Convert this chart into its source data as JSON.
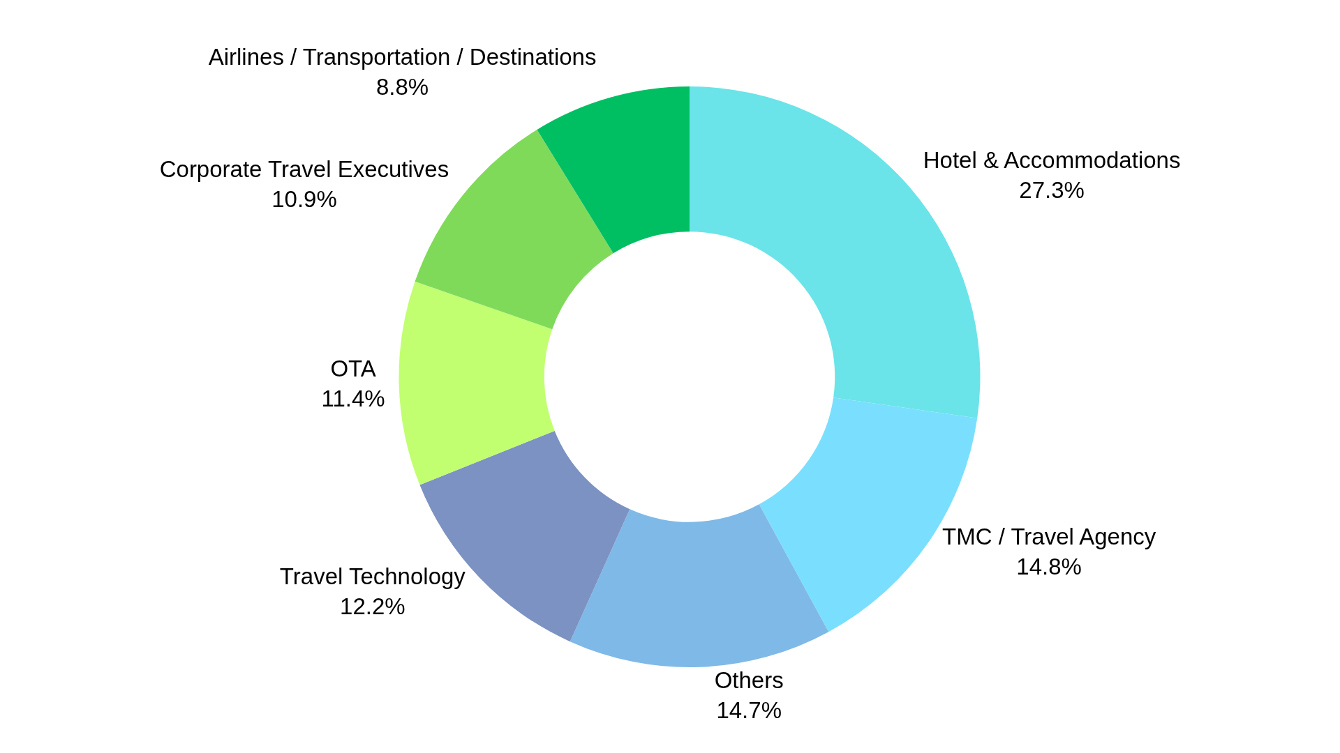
{
  "chart_data": {
    "type": "donut",
    "categories": [
      "Hotel & Accommodations",
      "TMC / Travel Agency",
      "Others",
      "Travel Technology",
      "OTA",
      "Corporate Travel Executives",
      "Airlines / Transportation / Destinations"
    ],
    "values": [
      27.3,
      14.8,
      14.7,
      12.2,
      11.4,
      10.9,
      8.8
    ],
    "value_labels": [
      "27.3%",
      "14.8%",
      "14.7%",
      "12.2%",
      "11.4%",
      "10.9%",
      "8.8%"
    ],
    "colors": [
      "#6ae4e8",
      "#7adffe",
      "#7fb9e7",
      "#7b92c2",
      "#c1ff70",
      "#80da5a",
      "#00bf63"
    ]
  }
}
